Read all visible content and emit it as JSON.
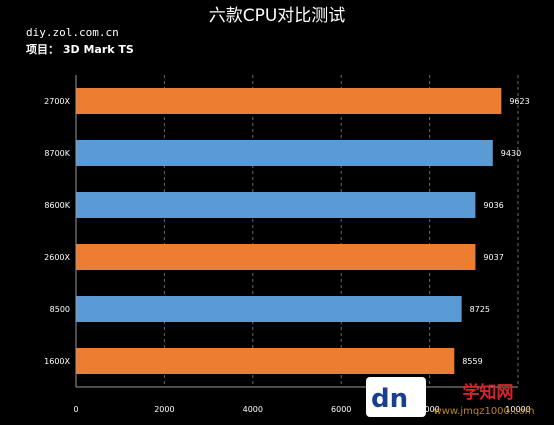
{
  "header": {
    "title": "六款CPU对比测试",
    "source": "diy.zol.com.cn",
    "project": "项目： 3D Mark TS"
  },
  "watermark": {
    "logo": "dn",
    "site_name": "学知网",
    "site_url": "www.jmqz1000.com"
  },
  "colors": {
    "background": "#000000",
    "orange": "#ED7D31",
    "blue": "#5B9BD5",
    "text": "#FFFFFF"
  },
  "chart_data": {
    "type": "bar",
    "orientation": "horizontal",
    "title": "六款CPU对比测试",
    "categories": [
      "2700X",
      "8700K",
      "8600K",
      "2600X",
      "8500",
      "1600X"
    ],
    "values": [
      9623,
      9430,
      9036,
      9037,
      8725,
      8559
    ],
    "bar_colors": [
      "orange",
      "blue",
      "blue",
      "orange",
      "blue",
      "orange"
    ],
    "x_ticks": [
      "0",
      "2000",
      "4000",
      "6000",
      "8000",
      "10000"
    ],
    "xlim": [
      0,
      10000
    ],
    "xlabel": "",
    "ylabel": "",
    "grid": true,
    "data_labels": true
  }
}
